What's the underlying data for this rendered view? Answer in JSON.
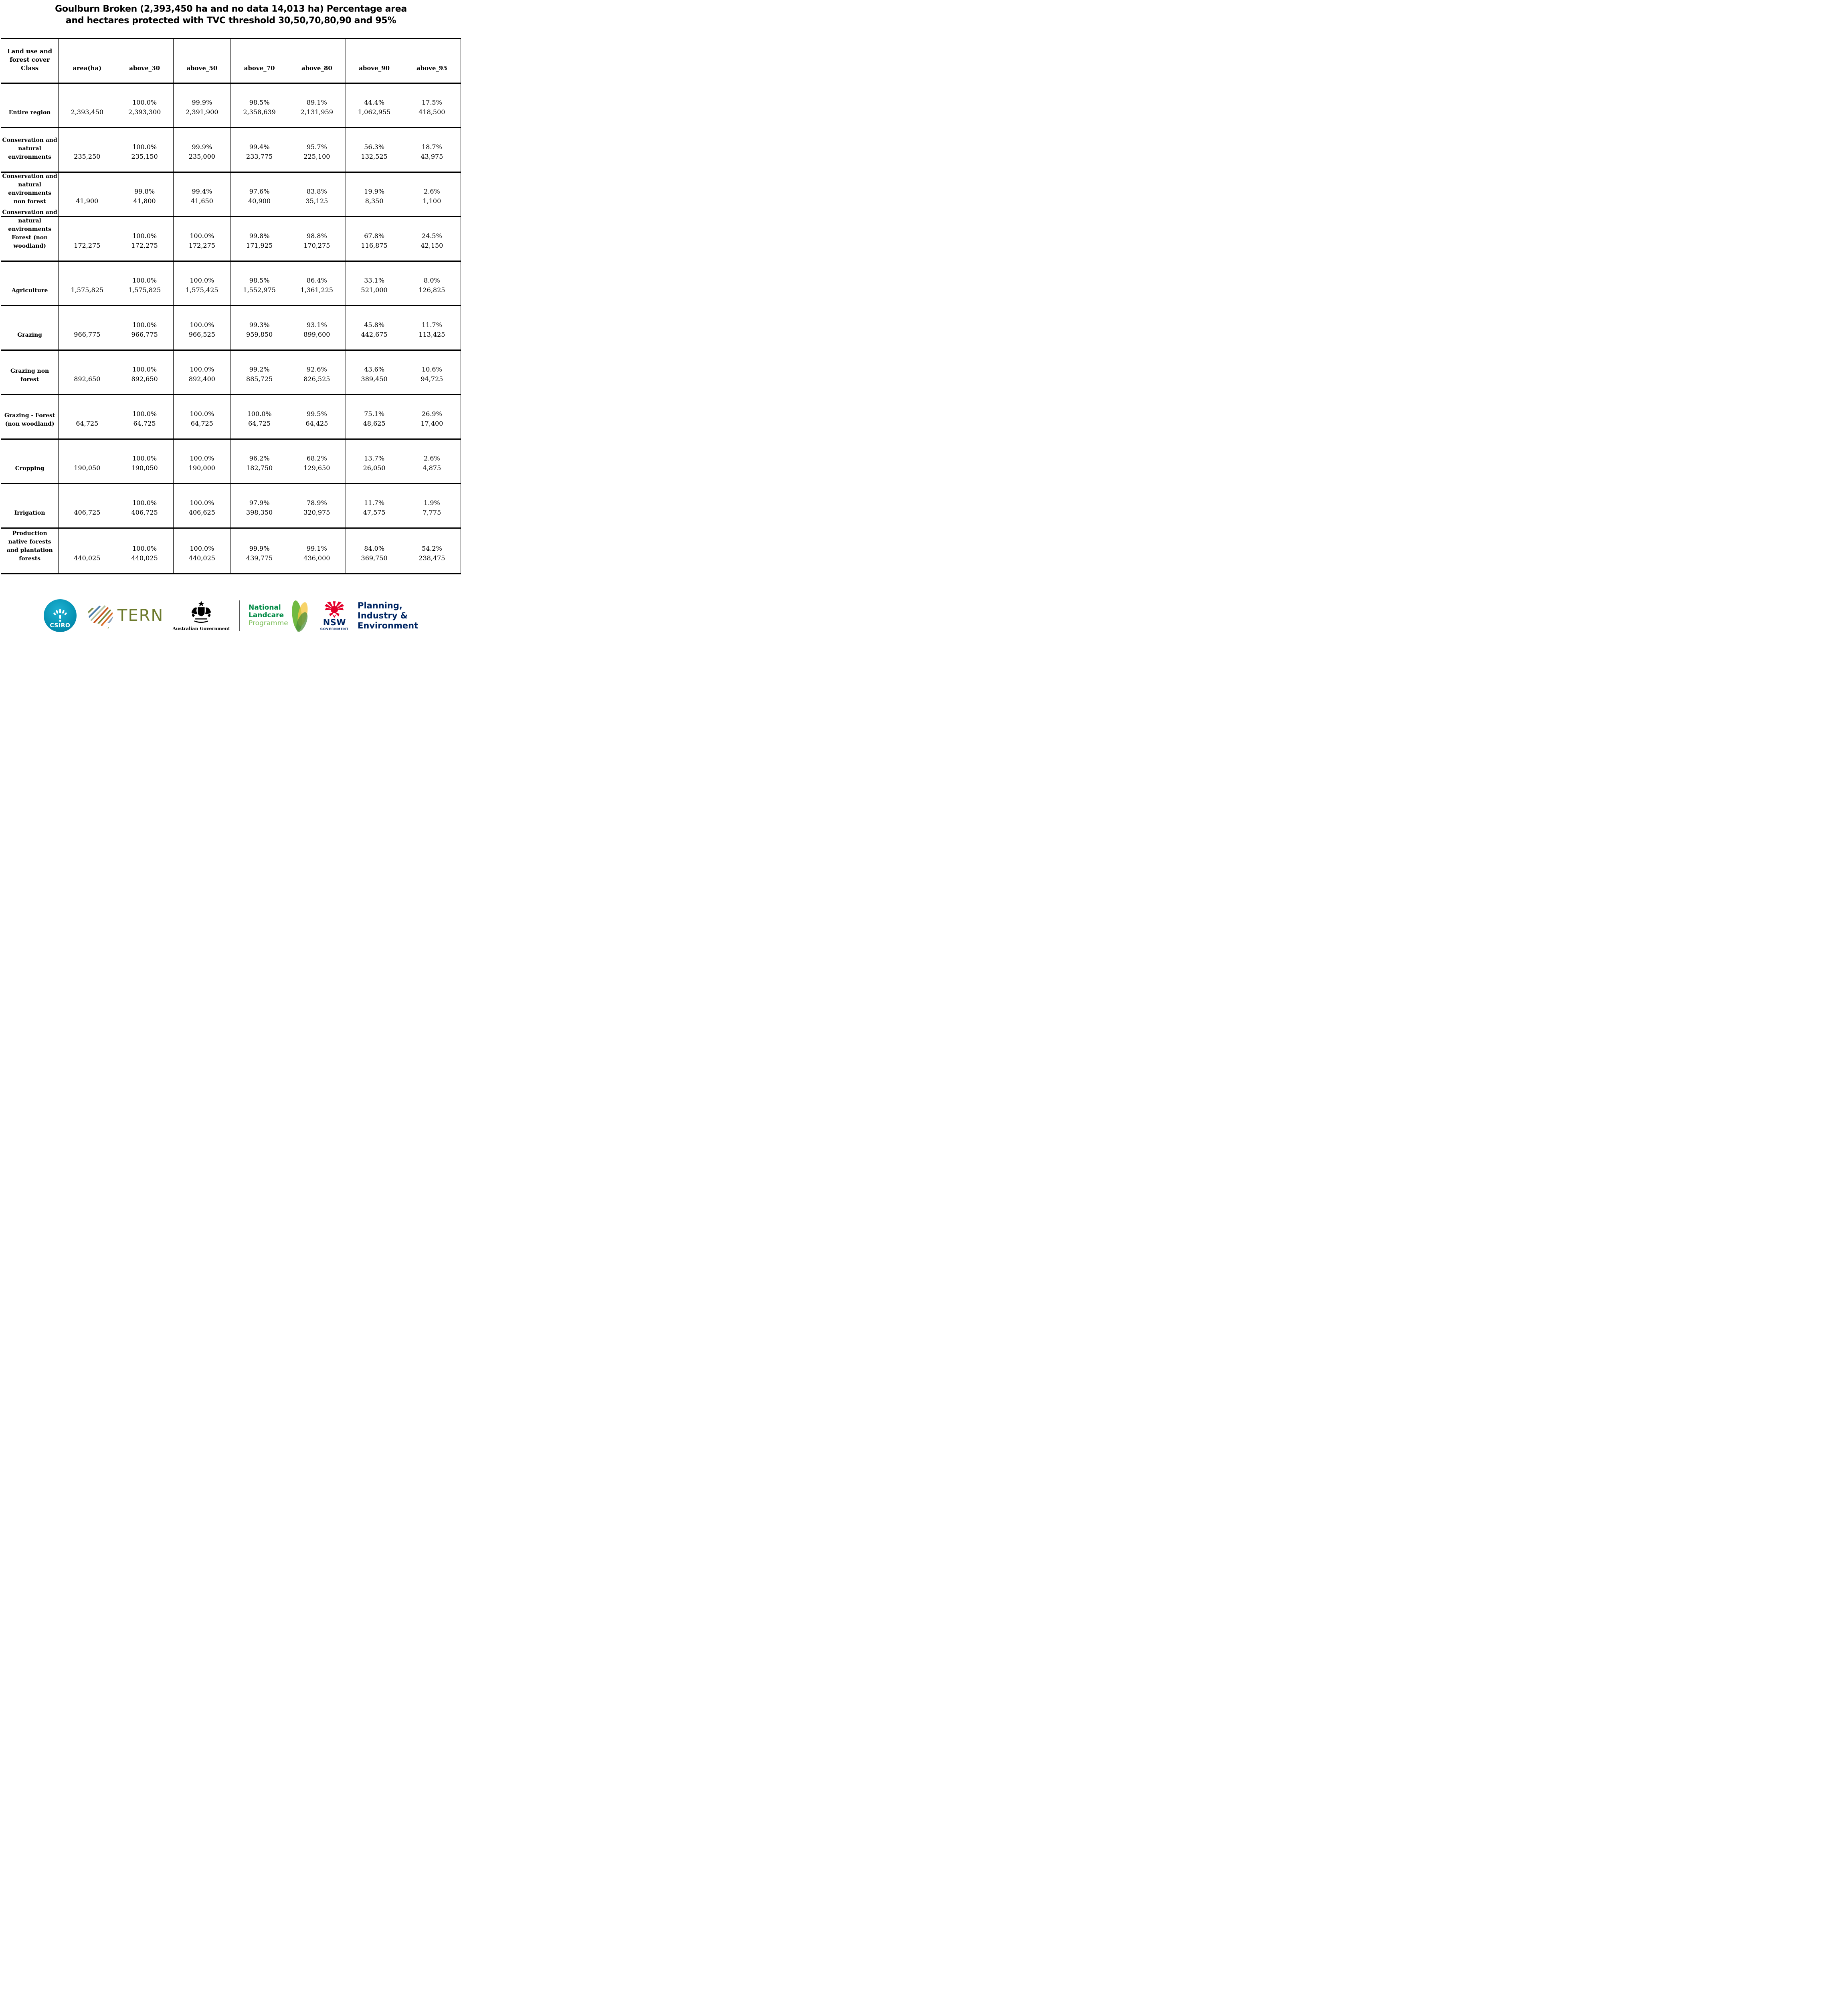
{
  "title": {
    "line1": "Goulburn Broken (2,393,450 ha and no data 14,013 ha) Percentage area",
    "line2": "and hectares protected with TVC threshold 30,50,70,80,90 and 95%"
  },
  "table": {
    "columns": [
      "Land use and forest cover Class",
      "area(ha)",
      "above_30",
      "above_50",
      "above_70",
      "above_80",
      "above_90",
      "above_95"
    ],
    "rows": [
      {
        "label": "Entire region",
        "area": "2,393,450",
        "cells": [
          {
            "pct": "100.0%",
            "ha": "2,393,300"
          },
          {
            "pct": "99.9%",
            "ha": "2,391,900"
          },
          {
            "pct": "98.5%",
            "ha": "2,358,639"
          },
          {
            "pct": "89.1%",
            "ha": "2,131,959"
          },
          {
            "pct": "44.4%",
            "ha": "1,062,955"
          },
          {
            "pct": "17.5%",
            "ha": "418,500"
          }
        ]
      },
      {
        "label": "Conservation and natural environments",
        "area": "235,250",
        "cells": [
          {
            "pct": "100.0%",
            "ha": "235,150"
          },
          {
            "pct": "99.9%",
            "ha": "235,000"
          },
          {
            "pct": "99.4%",
            "ha": "233,775"
          },
          {
            "pct": "95.7%",
            "ha": "225,100"
          },
          {
            "pct": "56.3%",
            "ha": "132,525"
          },
          {
            "pct": "18.7%",
            "ha": "43,975"
          }
        ]
      },
      {
        "label": "Conservation and natural environments non forest",
        "area": "41,900",
        "cells": [
          {
            "pct": "99.8%",
            "ha": "41,800"
          },
          {
            "pct": "99.4%",
            "ha": "41,650"
          },
          {
            "pct": "97.6%",
            "ha": "40,900"
          },
          {
            "pct": "83.8%",
            "ha": "35,125"
          },
          {
            "pct": "19.9%",
            "ha": "8,350"
          },
          {
            "pct": "2.6%",
            "ha": "1,100"
          }
        ]
      },
      {
        "label": "Conservation and natural environments Forest (non woodland)",
        "area": "172,275",
        "cells": [
          {
            "pct": "100.0%",
            "ha": "172,275"
          },
          {
            "pct": "100.0%",
            "ha": "172,275"
          },
          {
            "pct": "99.8%",
            "ha": "171,925"
          },
          {
            "pct": "98.8%",
            "ha": "170,275"
          },
          {
            "pct": "67.8%",
            "ha": "116,875"
          },
          {
            "pct": "24.5%",
            "ha": "42,150"
          }
        ]
      },
      {
        "label": "Agriculture",
        "area": "1,575,825",
        "cells": [
          {
            "pct": "100.0%",
            "ha": "1,575,825"
          },
          {
            "pct": "100.0%",
            "ha": "1,575,425"
          },
          {
            "pct": "98.5%",
            "ha": "1,552,975"
          },
          {
            "pct": "86.4%",
            "ha": "1,361,225"
          },
          {
            "pct": "33.1%",
            "ha": "521,000"
          },
          {
            "pct": "8.0%",
            "ha": "126,825"
          }
        ]
      },
      {
        "label": "Grazing",
        "area": "966,775",
        "cells": [
          {
            "pct": "100.0%",
            "ha": "966,775"
          },
          {
            "pct": "100.0%",
            "ha": "966,525"
          },
          {
            "pct": "99.3%",
            "ha": "959,850"
          },
          {
            "pct": "93.1%",
            "ha": "899,600"
          },
          {
            "pct": "45.8%",
            "ha": "442,675"
          },
          {
            "pct": "11.7%",
            "ha": "113,425"
          }
        ]
      },
      {
        "label": "Grazing non forest",
        "area": "892,650",
        "cells": [
          {
            "pct": "100.0%",
            "ha": "892,650"
          },
          {
            "pct": "100.0%",
            "ha": "892,400"
          },
          {
            "pct": "99.2%",
            "ha": "885,725"
          },
          {
            "pct": "92.6%",
            "ha": "826,525"
          },
          {
            "pct": "43.6%",
            "ha": "389,450"
          },
          {
            "pct": "10.6%",
            "ha": "94,725"
          }
        ]
      },
      {
        "label": "Grazing - Forest (non woodland)",
        "area": "64,725",
        "cells": [
          {
            "pct": "100.0%",
            "ha": "64,725"
          },
          {
            "pct": "100.0%",
            "ha": "64,725"
          },
          {
            "pct": "100.0%",
            "ha": "64,725"
          },
          {
            "pct": "99.5%",
            "ha": "64,425"
          },
          {
            "pct": "75.1%",
            "ha": "48,625"
          },
          {
            "pct": "26.9%",
            "ha": "17,400"
          }
        ]
      },
      {
        "label": "Cropping",
        "area": "190,050",
        "cells": [
          {
            "pct": "100.0%",
            "ha": "190,050"
          },
          {
            "pct": "100.0%",
            "ha": "190,000"
          },
          {
            "pct": "96.2%",
            "ha": "182,750"
          },
          {
            "pct": "68.2%",
            "ha": "129,650"
          },
          {
            "pct": "13.7%",
            "ha": "26,050"
          },
          {
            "pct": "2.6%",
            "ha": "4,875"
          }
        ]
      },
      {
        "label": "Irrigation",
        "area": "406,725",
        "cells": [
          {
            "pct": "100.0%",
            "ha": "406,725"
          },
          {
            "pct": "100.0%",
            "ha": "406,625"
          },
          {
            "pct": "97.9%",
            "ha": "398,350"
          },
          {
            "pct": "78.9%",
            "ha": "320,975"
          },
          {
            "pct": "11.7%",
            "ha": "47,575"
          },
          {
            "pct": "1.9%",
            "ha": "7,775"
          }
        ]
      },
      {
        "label": "Production native forests and plantation forests",
        "area": "440,025",
        "cells": [
          {
            "pct": "100.0%",
            "ha": "440,025"
          },
          {
            "pct": "100.0%",
            "ha": "440,025"
          },
          {
            "pct": "99.9%",
            "ha": "439,775"
          },
          {
            "pct": "99.1%",
            "ha": "436,000"
          },
          {
            "pct": "84.0%",
            "ha": "369,750"
          },
          {
            "pct": "54.2%",
            "ha": "238,475"
          }
        ]
      }
    ]
  },
  "footer": {
    "csiro": "CSIRO",
    "tern": "TERN",
    "aus_gov": "Australian Government",
    "landcare_line1": "National",
    "landcare_line2": "Landcare",
    "landcare_line3": "Programme",
    "nsw": "NSW",
    "nsw_government": "GOVERNMENT",
    "agency_line1": "Planning,",
    "agency_line2": "Industry &",
    "agency_line3": "Environment",
    "colors": {
      "csiro_teal": "#0795b6",
      "tern_olive": "#6d7a2d",
      "landcare_green": "#008a45",
      "landcare_light_green": "#7dbf5a",
      "nsw_red": "#e4002b",
      "nsw_navy": "#002664"
    }
  }
}
